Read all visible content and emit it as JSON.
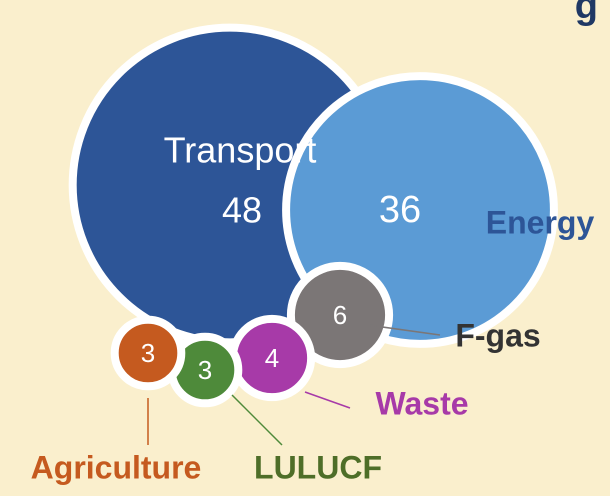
{
  "chart_data": {
    "type": "bubble",
    "title": "g",
    "categories": [
      "Transport",
      "Energy",
      "F-gas",
      "Waste",
      "LULUCF",
      "Agriculture"
    ],
    "values": [
      48,
      36,
      6,
      4,
      3,
      3
    ],
    "colors": [
      "#2d5597",
      "#5b9bd5",
      "#7b7676",
      "#a73aa8",
      "#4e8a3a",
      "#c55a1f"
    ],
    "label_colors": [
      "#ffffff",
      "#2d5597",
      "#333333",
      "#a73aa8",
      "#4e6e28",
      "#c55a1f"
    ]
  }
}
